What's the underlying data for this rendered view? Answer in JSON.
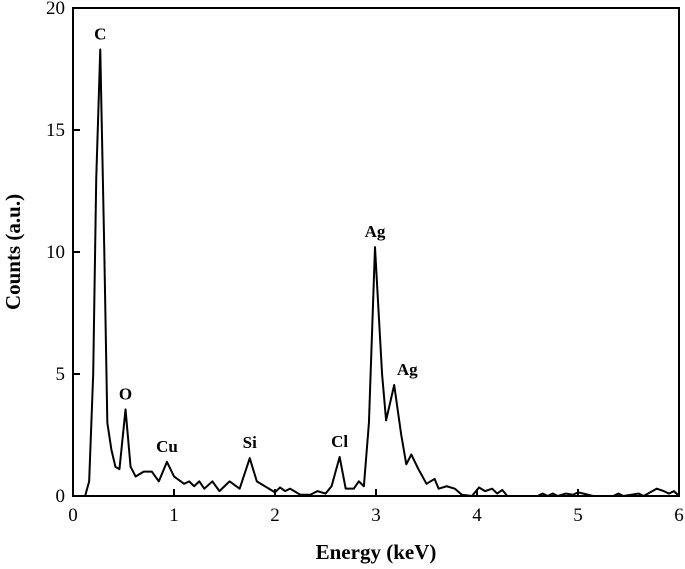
{
  "chart_data": {
    "type": "line",
    "xlabel": "Energy (keV)",
    "ylabel": "Counts (a.u.)",
    "xlim": [
      0,
      6
    ],
    "ylim": [
      0,
      20
    ],
    "xticks": [
      0,
      1,
      2,
      3,
      4,
      5,
      6
    ],
    "yticks": [
      0,
      5,
      10,
      15,
      20
    ],
    "color": "#000000",
    "x": [
      0,
      0.12,
      0.16,
      0.2,
      0.23,
      0.27,
      0.31,
      0.34,
      0.38,
      0.42,
      0.46,
      0.52,
      0.57,
      0.62,
      0.7,
      0.78,
      0.85,
      0.93,
      1.0,
      1.1,
      1.15,
      1.2,
      1.25,
      1.3,
      1.38,
      1.45,
      1.55,
      1.65,
      1.75,
      1.82,
      1.9,
      2.0,
      2.05,
      2.1,
      2.15,
      2.25,
      2.35,
      2.42,
      2.5,
      2.56,
      2.64,
      2.7,
      2.78,
      2.83,
      2.88,
      2.93,
      2.99,
      3.06,
      3.1,
      3.18,
      3.25,
      3.3,
      3.35,
      3.42,
      3.5,
      3.58,
      3.62,
      3.7,
      3.78,
      3.85,
      3.95,
      4.02,
      4.08,
      4.15,
      4.2,
      4.25,
      4.3,
      4.6,
      4.65,
      4.7,
      4.75,
      4.8,
      4.88,
      4.95,
      5.0,
      5.1,
      5.15,
      5.35,
      5.4,
      5.45,
      5.6,
      5.65,
      5.78,
      5.85,
      5.9,
      5.95,
      6.0
    ],
    "values": [
      0,
      0,
      0.6,
      5,
      13,
      18.3,
      10,
      3,
      1.9,
      1.2,
      1.1,
      3.55,
      1.2,
      0.8,
      1.0,
      1.0,
      0.6,
      1.4,
      0.8,
      0.5,
      0.6,
      0.4,
      0.6,
      0.3,
      0.6,
      0.2,
      0.6,
      0.3,
      1.55,
      0.6,
      0.4,
      0.15,
      0.35,
      0.2,
      0.3,
      0.05,
      0.05,
      0.2,
      0.1,
      0.4,
      1.6,
      0.3,
      0.3,
      0.6,
      0.4,
      3,
      10.2,
      5,
      3.1,
      4.55,
      2.5,
      1.3,
      1.7,
      1.1,
      0.5,
      0.7,
      0.3,
      0.4,
      0.3,
      0.05,
      0,
      0.35,
      0.2,
      0.3,
      0.1,
      0.25,
      0,
      0,
      0.1,
      0,
      0.1,
      0,
      0.1,
      0.05,
      0.15,
      0.05,
      0,
      0,
      0.1,
      0,
      0.1,
      0,
      0.3,
      0.2,
      0.1,
      0.2,
      0
    ],
    "annotations": [
      {
        "text": "C",
        "x": 0.27,
        "y": 18.3
      },
      {
        "text": "O",
        "x": 0.52,
        "y": 3.55
      },
      {
        "text": "Cu",
        "x": 0.93,
        "y": 1.4
      },
      {
        "text": "Si",
        "x": 1.75,
        "y": 1.55
      },
      {
        "text": "Cl",
        "x": 2.64,
        "y": 1.6
      },
      {
        "text": "Ag",
        "x": 2.99,
        "y": 10.2
      },
      {
        "text": "Ag",
        "x": 3.25,
        "y": 4.55
      }
    ]
  }
}
